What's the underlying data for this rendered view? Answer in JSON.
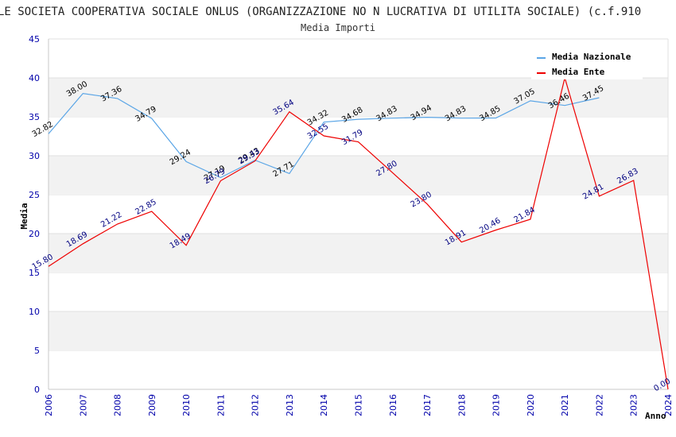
{
  "chart_data": {
    "type": "line",
    "title": "LE SOCIETA COOPERATIVA SOCIALE ONLUS (ORGANIZZAZIONE NO N LUCRATIVA DI UTILITA SOCIALE) (c.f.910",
    "subtitle": "Media Importi",
    "xlabel": "Anno",
    "ylabel": "Media",
    "ylim": [
      0,
      45
    ],
    "yticks": [
      "0",
      "5",
      "10",
      "15",
      "20",
      "25",
      "30",
      "35",
      "40",
      "45"
    ],
    "x": [
      "2006",
      "2007",
      "2008",
      "2009",
      "2010",
      "2011",
      "2012",
      "2013",
      "2014",
      "2015",
      "2016",
      "2017",
      "2018",
      "2019",
      "2020",
      "2021",
      "2022",
      "2023",
      "2024"
    ],
    "grid": "horizontal bands",
    "legend_position": "top-right",
    "series": [
      {
        "name": "Media Nazionale",
        "color": "#5aa5e6",
        "values": [
          32.82,
          38.0,
          37.36,
          34.79,
          29.24,
          27.19,
          29.43,
          27.71,
          34.32,
          34.68,
          34.83,
          34.94,
          34.83,
          34.85,
          37.05,
          36.46,
          37.45,
          null,
          null
        ],
        "labels": [
          "32.82",
          "38.00",
          "37.36",
          "34.79",
          "29.24",
          "27.19",
          "29.43",
          "27.71",
          "34.32",
          "34.68",
          "34.83",
          "34.94",
          "34.83",
          "34.85",
          "37.05",
          "36.46",
          "37.45",
          null,
          null
        ]
      },
      {
        "name": "Media Ente",
        "color": "#ee0000",
        "values": [
          15.8,
          18.69,
          21.22,
          22.85,
          18.49,
          26.79,
          29.33,
          35.64,
          32.55,
          31.79,
          27.8,
          23.8,
          18.91,
          20.46,
          21.84,
          40.0,
          24.81,
          26.83,
          0.0
        ],
        "labels": [
          "15.80",
          "18.69",
          "21.22",
          "22.85",
          "18.49",
          "26.79",
          "29.33",
          "35.64",
          "32.55",
          "31.79",
          "27.80",
          "23.80",
          "18.91",
          "20.46",
          "21.84",
          null,
          "24.81",
          "26.83",
          "0.00"
        ]
      }
    ]
  }
}
